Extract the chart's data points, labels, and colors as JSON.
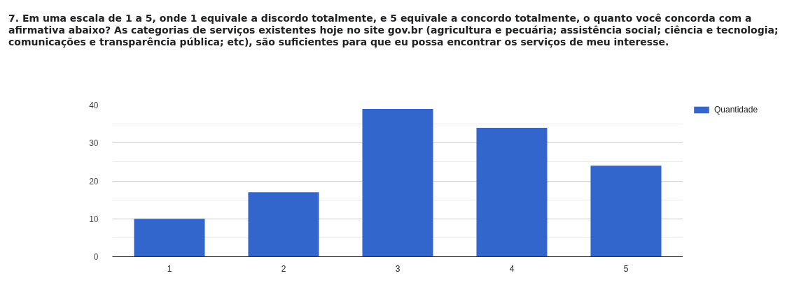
{
  "chart_data": {
    "type": "bar",
    "title": "7. Em uma escala de 1 a 5, onde 1 equivale a discordo totalmente, e 5 equivale a concordo totalmente, o quanto você concorda com a afirmativa abaixo? As categorias de serviços existentes hoje no site gov.br (agricultura e pecuária; assistência social; ciência e tecnologia; comunicações e transparência pública; etc), são suficientes para que eu possa encontrar os serviços de meu interesse.",
    "categories": [
      "1",
      "2",
      "3",
      "4",
      "5"
    ],
    "series": [
      {
        "name": "Quantidade",
        "color": "#3366cc",
        "values": [
          10,
          17,
          39,
          34,
          24
        ]
      }
    ],
    "ylim": [
      0,
      40
    ],
    "yticks": [
      0,
      {
        "value": 5,
        "label": null
      },
      10,
      {
        "value": 15,
        "label": null
      },
      20,
      {
        "value": 25,
        "label": null
      },
      30,
      {
        "value": 35,
        "label": null
      },
      40
    ],
    "grid": "y",
    "legend": "top right"
  }
}
